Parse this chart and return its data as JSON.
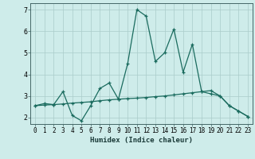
{
  "title": "",
  "xlabel": "Humidex (Indice chaleur)",
  "ylabel": "",
  "background_color": "#ceecea",
  "grid_color": "#aaccca",
  "line_color": "#1a6b5e",
  "xlim": [
    -0.5,
    23.5
  ],
  "ylim": [
    1.7,
    7.3
  ],
  "xticks": [
    0,
    1,
    2,
    3,
    4,
    5,
    6,
    7,
    8,
    9,
    10,
    11,
    12,
    13,
    14,
    15,
    16,
    17,
    18,
    19,
    20,
    21,
    22,
    23
  ],
  "yticks": [
    2,
    3,
    4,
    5,
    6,
    7
  ],
  "series1_x": [
    0,
    1,
    2,
    3,
    4,
    5,
    6,
    7,
    8,
    9,
    10,
    11,
    12,
    13,
    14,
    15,
    16,
    17,
    18,
    19,
    20,
    21,
    22,
    23
  ],
  "series1_y": [
    2.55,
    2.65,
    2.6,
    3.2,
    2.1,
    1.85,
    2.55,
    3.35,
    3.6,
    2.85,
    4.5,
    7.0,
    6.7,
    4.6,
    5.0,
    6.1,
    4.1,
    5.4,
    3.2,
    3.1,
    3.0,
    2.55,
    2.3,
    2.05
  ],
  "series2_x": [
    0,
    1,
    2,
    3,
    4,
    5,
    6,
    7,
    8,
    9,
    10,
    11,
    12,
    13,
    14,
    15,
    16,
    17,
    18,
    19,
    20,
    21,
    22,
    23
  ],
  "series2_y": [
    2.55,
    2.58,
    2.6,
    2.63,
    2.67,
    2.7,
    2.73,
    2.78,
    2.82,
    2.85,
    2.88,
    2.9,
    2.93,
    2.97,
    3.0,
    3.05,
    3.1,
    3.15,
    3.2,
    3.25,
    3.0,
    2.55,
    2.3,
    2.05
  ],
  "tick_fontsize": 5.5,
  "xlabel_fontsize": 6.5
}
